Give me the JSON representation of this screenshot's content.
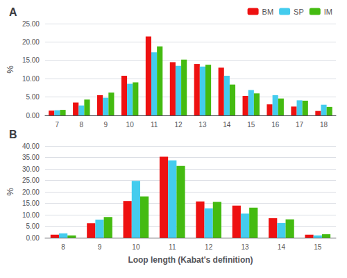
{
  "chart_data": [
    {
      "type": "bar",
      "title": "A",
      "ylabel": "%",
      "categories": [
        "7",
        "8",
        "9",
        "10",
        "11",
        "12",
        "13",
        "14",
        "15",
        "16",
        "17",
        "18"
      ],
      "series": [
        {
          "name": "BM",
          "color": "#EE1111",
          "values": [
            1.3,
            3.5,
            5.5,
            10.8,
            21.5,
            14.5,
            14.0,
            13.0,
            5.3,
            3.0,
            2.4,
            1.2
          ]
        },
        {
          "name": "SP",
          "color": "#44CCEE",
          "values": [
            1.4,
            2.7,
            4.8,
            8.6,
            17.2,
            13.5,
            13.3,
            10.8,
            6.9,
            5.5,
            4.1,
            2.9
          ]
        },
        {
          "name": "IM",
          "color": "#44BB11",
          "values": [
            1.5,
            4.3,
            6.2,
            9.0,
            18.8,
            15.2,
            13.8,
            8.4,
            6.0,
            4.6,
            4.0,
            2.3
          ]
        }
      ],
      "ylim": [
        0,
        25.0
      ],
      "yticks": [
        {
          "value": 0,
          "label": "0.00"
        },
        {
          "value": 5,
          "label": "5.00"
        },
        {
          "value": 10,
          "label": "10.00"
        },
        {
          "value": 15,
          "label": "15.00"
        },
        {
          "value": 20,
          "label": "20.00"
        },
        {
          "value": 25,
          "label": "25.00"
        }
      ],
      "grid": true,
      "legend": "upper right"
    },
    {
      "type": "bar",
      "title": "B",
      "ylabel": "%",
      "xlabel": "Loop length (Kabat's definition)",
      "categories": [
        "8",
        "9",
        "10",
        "11",
        "12",
        "13",
        "14",
        "15"
      ],
      "series": [
        {
          "name": "BM",
          "color": "#EE1111",
          "values": [
            1.3,
            6.3,
            16.0,
            35.3,
            15.8,
            14.0,
            8.5,
            1.3
          ]
        },
        {
          "name": "SP",
          "color": "#44CCEE",
          "values": [
            1.9,
            7.9,
            24.8,
            33.7,
            12.8,
            10.5,
            6.4,
            1.0
          ]
        },
        {
          "name": "IM",
          "color": "#44BB11",
          "values": [
            1.0,
            9.0,
            18.0,
            31.3,
            15.6,
            13.1,
            8.0,
            1.5
          ]
        }
      ],
      "ylim": [
        0,
        40.0
      ],
      "yticks": [
        {
          "value": 0,
          "label": "0.00"
        },
        {
          "value": 5,
          "label": "5.00"
        },
        {
          "value": 10,
          "label": "10.00"
        },
        {
          "value": 15,
          "label": "15.00"
        },
        {
          "value": 20,
          "label": "20.00"
        },
        {
          "value": 25,
          "label": "25.00"
        },
        {
          "value": 30,
          "label": "30.00"
        },
        {
          "value": 35,
          "label": "35.00"
        },
        {
          "value": 40,
          "label": "40.00"
        }
      ],
      "grid": true
    }
  ]
}
